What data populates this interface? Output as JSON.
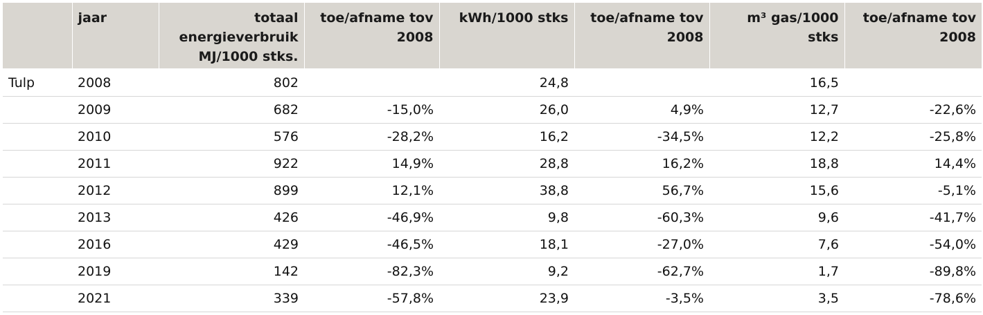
{
  "table": {
    "headers": [
      "",
      "jaar",
      "totaal energieverbruik MJ/1000 stks.",
      "toe/afname tov 2008",
      "kWh/1000 stks",
      "toe/afname tov 2008",
      "m³ gas/1000 stks",
      "toe/afname tov 2008"
    ],
    "rows": [
      [
        "Tulp",
        "2008",
        "802",
        "",
        "24,8",
        "",
        "16,5",
        ""
      ],
      [
        "",
        "2009",
        "682",
        "-15,0%",
        "26,0",
        "4,9%",
        "12,7",
        "-22,6%"
      ],
      [
        "",
        "2010",
        "576",
        "-28,2%",
        "16,2",
        "-34,5%",
        "12,2",
        "-25,8%"
      ],
      [
        "",
        "2011",
        "922",
        "14,9%",
        "28,8",
        "16,2%",
        "18,8",
        "14,4%"
      ],
      [
        "",
        "2012",
        "899",
        "12,1%",
        "38,8",
        "56,7%",
        "15,6",
        "-5,1%"
      ],
      [
        "",
        "2013",
        "426",
        "-46,9%",
        "9,8",
        "-60,3%",
        "9,6",
        "-41,7%"
      ],
      [
        "",
        "2016",
        "429",
        "-46,5%",
        "18,1",
        "-27,0%",
        "7,6",
        "-54,0%"
      ],
      [
        "",
        "2019",
        "142",
        "-82,3%",
        "9,2",
        "-62,7%",
        "1,7",
        "-89,8%"
      ],
      [
        "",
        "2021",
        "339",
        "-57,8%",
        "23,9",
        "-3,5%",
        "3,5",
        "-78,6%"
      ]
    ]
  }
}
